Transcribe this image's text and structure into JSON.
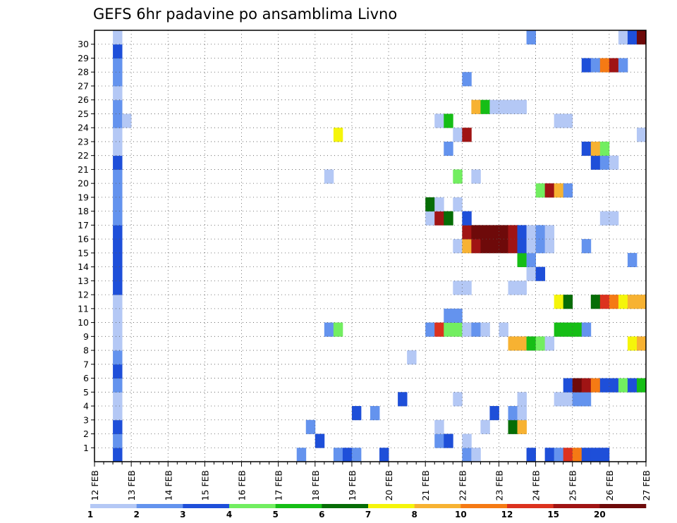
{
  "chart_data": {
    "type": "heatmap",
    "title": "GEFS 6hr padavine po ansamblima Livno",
    "x_labels": [
      "12 FEB",
      "13 FEB",
      "14 FEB",
      "15 FEB",
      "16 FEB",
      "17 FEB",
      "18 FEB",
      "19 FEB",
      "20 FEB",
      "21 FEB",
      "22 FEB",
      "23 FEB",
      "24 FEB",
      "25 FEB",
      "26 FEB",
      "27 FEB"
    ],
    "y_labels": [
      "1",
      "2",
      "3",
      "4",
      "5",
      "6",
      "7",
      "8",
      "9",
      "10",
      "11",
      "12",
      "13",
      "14",
      "15",
      "16",
      "17",
      "18",
      "19",
      "20",
      "21",
      "22",
      "23",
      "24",
      "25",
      "26",
      "27",
      "28",
      "29",
      "30"
    ],
    "x_range": [
      "12 FEB 00Z",
      "27 FEB 00Z"
    ],
    "y_range": [
      0,
      30
    ],
    "grid": true,
    "time_step_hours": 6,
    "colorbar": {
      "labels": [
        "1",
        "2",
        "3",
        "4",
        "5",
        "6",
        "7",
        "8",
        "10",
        "12",
        "15",
        "20"
      ],
      "colors": [
        "#b4c8f5",
        "#6493ee",
        "#1e4fd9",
        "#72ee60",
        "#16be16",
        "#066d06",
        "#f5f50a",
        "#f7b232",
        "#f57a14",
        "#dc321e",
        "#a01414",
        "#6e0a0a"
      ]
    },
    "cells": [
      {
        "m": 0,
        "t": 3,
        "c": 3
      },
      {
        "m": 0,
        "t": 23,
        "c": 2
      },
      {
        "m": 0,
        "t": 27,
        "c": 2
      },
      {
        "m": 0,
        "t": 28,
        "c": 3
      },
      {
        "m": 0,
        "t": 29,
        "c": 2
      },
      {
        "m": 0,
        "t": 32,
        "c": 3
      },
      {
        "m": 0,
        "t": 41,
        "c": 2
      },
      {
        "m": 0,
        "t": 42,
        "c": 1
      },
      {
        "m": 0,
        "t": 48,
        "c": 3
      },
      {
        "m": 0,
        "t": 50,
        "c": 3
      },
      {
        "m": 0,
        "t": 51,
        "c": 2
      },
      {
        "m": 0,
        "t": 52,
        "c": 10
      },
      {
        "m": 0,
        "t": 53,
        "c": 9
      },
      {
        "m": 0,
        "t": 54,
        "c": 3
      },
      {
        "m": 0,
        "t": 55,
        "c": 3
      },
      {
        "m": 0,
        "t": 56,
        "c": 3
      },
      {
        "m": 1,
        "t": 3,
        "c": 2
      },
      {
        "m": 1,
        "t": 25,
        "c": 3
      },
      {
        "m": 1,
        "t": 38,
        "c": 2
      },
      {
        "m": 1,
        "t": 39,
        "c": 3
      },
      {
        "m": 1,
        "t": 41,
        "c": 1
      },
      {
        "m": 2,
        "t": 3,
        "c": 3
      },
      {
        "m": 2,
        "t": 24,
        "c": 2
      },
      {
        "m": 2,
        "t": 38,
        "c": 1
      },
      {
        "m": 2,
        "t": 43,
        "c": 1
      },
      {
        "m": 2,
        "t": 46,
        "c": 6
      },
      {
        "m": 2,
        "t": 47,
        "c": 8
      },
      {
        "m": 3,
        "t": 3,
        "c": 1
      },
      {
        "m": 3,
        "t": 29,
        "c": 3
      },
      {
        "m": 3,
        "t": 31,
        "c": 2
      },
      {
        "m": 3,
        "t": 44,
        "c": 3
      },
      {
        "m": 3,
        "t": 46,
        "c": 2
      },
      {
        "m": 3,
        "t": 47,
        "c": 1
      },
      {
        "m": 4,
        "t": 3,
        "c": 1
      },
      {
        "m": 4,
        "t": 34,
        "c": 3
      },
      {
        "m": 4,
        "t": 40,
        "c": 1
      },
      {
        "m": 4,
        "t": 47,
        "c": 1
      },
      {
        "m": 4,
        "t": 51,
        "c": 1
      },
      {
        "m": 4,
        "t": 52,
        "c": 1
      },
      {
        "m": 4,
        "t": 53,
        "c": 2
      },
      {
        "m": 4,
        "t": 54,
        "c": 2
      },
      {
        "m": 5,
        "t": 3,
        "c": 2
      },
      {
        "m": 5,
        "t": 52,
        "c": 3
      },
      {
        "m": 5,
        "t": 53,
        "c": 12
      },
      {
        "m": 5,
        "t": 54,
        "c": 11
      },
      {
        "m": 5,
        "t": 55,
        "c": 9
      },
      {
        "m": 5,
        "t": 56,
        "c": 3
      },
      {
        "m": 5,
        "t": 57,
        "c": 3
      },
      {
        "m": 5,
        "t": 58,
        "c": 4
      },
      {
        "m": 5,
        "t": 59,
        "c": 3
      },
      {
        "m": 5,
        "t": 60,
        "c": 5
      },
      {
        "m": 6,
        "t": 3,
        "c": 3
      },
      {
        "m": 7,
        "t": 3,
        "c": 2
      },
      {
        "m": 7,
        "t": 35,
        "c": 1
      },
      {
        "m": 8,
        "t": 3,
        "c": 1
      },
      {
        "m": 8,
        "t": 46,
        "c": 8
      },
      {
        "m": 8,
        "t": 47,
        "c": 8
      },
      {
        "m": 8,
        "t": 48,
        "c": 5
      },
      {
        "m": 8,
        "t": 49,
        "c": 4
      },
      {
        "m": 8,
        "t": 50,
        "c": 1
      },
      {
        "m": 8,
        "t": 59,
        "c": 7
      },
      {
        "m": 8,
        "t": 60,
        "c": 8
      },
      {
        "m": 9,
        "t": 3,
        "c": 1
      },
      {
        "m": 9,
        "t": 26,
        "c": 2
      },
      {
        "m": 9,
        "t": 27,
        "c": 4
      },
      {
        "m": 9,
        "t": 37,
        "c": 2
      },
      {
        "m": 9,
        "t": 38,
        "c": 10
      },
      {
        "m": 9,
        "t": 39,
        "c": 4
      },
      {
        "m": 9,
        "t": 40,
        "c": 4
      },
      {
        "m": 9,
        "t": 41,
        "c": 1
      },
      {
        "m": 9,
        "t": 42,
        "c": 2
      },
      {
        "m": 9,
        "t": 43,
        "c": 1
      },
      {
        "m": 9,
        "t": 45,
        "c": 1
      },
      {
        "m": 9,
        "t": 51,
        "c": 5
      },
      {
        "m": 9,
        "t": 52,
        "c": 5
      },
      {
        "m": 9,
        "t": 53,
        "c": 5
      },
      {
        "m": 9,
        "t": 54,
        "c": 2
      },
      {
        "m": 10,
        "t": 3,
        "c": 1
      },
      {
        "m": 10,
        "t": 39,
        "c": 2
      },
      {
        "m": 10,
        "t": 40,
        "c": 2
      },
      {
        "m": 11,
        "t": 3,
        "c": 1
      },
      {
        "m": 11,
        "t": 51,
        "c": 7
      },
      {
        "m": 11,
        "t": 52,
        "c": 6
      },
      {
        "m": 11,
        "t": 55,
        "c": 6
      },
      {
        "m": 11,
        "t": 56,
        "c": 10
      },
      {
        "m": 11,
        "t": 57,
        "c": 9
      },
      {
        "m": 11,
        "t": 58,
        "c": 7
      },
      {
        "m": 11,
        "t": 59,
        "c": 8
      },
      {
        "m": 11,
        "t": 60,
        "c": 8
      },
      {
        "m": 12,
        "t": 3,
        "c": 3
      },
      {
        "m": 12,
        "t": 40,
        "c": 1
      },
      {
        "m": 12,
        "t": 41,
        "c": 1
      },
      {
        "m": 12,
        "t": 46,
        "c": 1
      },
      {
        "m": 12,
        "t": 47,
        "c": 1
      },
      {
        "m": 13,
        "t": 3,
        "c": 3
      },
      {
        "m": 13,
        "t": 48,
        "c": 1
      },
      {
        "m": 13,
        "t": 49,
        "c": 3
      },
      {
        "m": 14,
        "t": 3,
        "c": 3
      },
      {
        "m": 14,
        "t": 47,
        "c": 5
      },
      {
        "m": 14,
        "t": 48,
        "c": 2
      },
      {
        "m": 14,
        "t": 59,
        "c": 2
      },
      {
        "m": 15,
        "t": 3,
        "c": 3
      },
      {
        "m": 15,
        "t": 40,
        "c": 1
      },
      {
        "m": 15,
        "t": 41,
        "c": 8
      },
      {
        "m": 15,
        "t": 42,
        "c": 11
      },
      {
        "m": 15,
        "t": 43,
        "c": 12
      },
      {
        "m": 15,
        "t": 44,
        "c": 12
      },
      {
        "m": 15,
        "t": 45,
        "c": 12
      },
      {
        "m": 15,
        "t": 46,
        "c": 11
      },
      {
        "m": 15,
        "t": 47,
        "c": 3
      },
      {
        "m": 15,
        "t": 48,
        "c": 1
      },
      {
        "m": 15,
        "t": 49,
        "c": 2
      },
      {
        "m": 15,
        "t": 50,
        "c": 1
      },
      {
        "m": 15,
        "t": 54,
        "c": 2
      },
      {
        "m": 16,
        "t": 3,
        "c": 3
      },
      {
        "m": 16,
        "t": 41,
        "c": 11
      },
      {
        "m": 16,
        "t": 42,
        "c": 12
      },
      {
        "m": 16,
        "t": 43,
        "c": 12
      },
      {
        "m": 16,
        "t": 44,
        "c": 12
      },
      {
        "m": 16,
        "t": 45,
        "c": 12
      },
      {
        "m": 16,
        "t": 46,
        "c": 11
      },
      {
        "m": 16,
        "t": 47,
        "c": 3
      },
      {
        "m": 16,
        "t": 48,
        "c": 1
      },
      {
        "m": 16,
        "t": 49,
        "c": 2
      },
      {
        "m": 16,
        "t": 50,
        "c": 1
      },
      {
        "m": 17,
        "t": 3,
        "c": 2
      },
      {
        "m": 17,
        "t": 37,
        "c": 1
      },
      {
        "m": 17,
        "t": 38,
        "c": 11
      },
      {
        "m": 17,
        "t": 39,
        "c": 6
      },
      {
        "m": 17,
        "t": 41,
        "c": 3
      },
      {
        "m": 17,
        "t": 56,
        "c": 1
      },
      {
        "m": 17,
        "t": 57,
        "c": 1
      },
      {
        "m": 18,
        "t": 3,
        "c": 2
      },
      {
        "m": 18,
        "t": 37,
        "c": 6
      },
      {
        "m": 18,
        "t": 38,
        "c": 1
      },
      {
        "m": 18,
        "t": 40,
        "c": 1
      },
      {
        "m": 19,
        "t": 3,
        "c": 2
      },
      {
        "m": 19,
        "t": 49,
        "c": 4
      },
      {
        "m": 19,
        "t": 50,
        "c": 11
      },
      {
        "m": 19,
        "t": 51,
        "c": 8
      },
      {
        "m": 19,
        "t": 52,
        "c": 2
      },
      {
        "m": 20,
        "t": 3,
        "c": 2
      },
      {
        "m": 20,
        "t": 26,
        "c": 1
      },
      {
        "m": 20,
        "t": 40,
        "c": 4
      },
      {
        "m": 20,
        "t": 42,
        "c": 1
      },
      {
        "m": 21,
        "t": 3,
        "c": 3
      },
      {
        "m": 21,
        "t": 55,
        "c": 3
      },
      {
        "m": 21,
        "t": 56,
        "c": 2
      },
      {
        "m": 21,
        "t": 57,
        "c": 1
      },
      {
        "m": 22,
        "t": 3,
        "c": 1
      },
      {
        "m": 22,
        "t": 39,
        "c": 2
      },
      {
        "m": 22,
        "t": 54,
        "c": 3
      },
      {
        "m": 22,
        "t": 55,
        "c": 8
      },
      {
        "m": 22,
        "t": 56,
        "c": 4
      },
      {
        "m": 23,
        "t": 3,
        "c": 1
      },
      {
        "m": 23,
        "t": 27,
        "c": 7
      },
      {
        "m": 23,
        "t": 40,
        "c": 1
      },
      {
        "m": 23,
        "t": 41,
        "c": 11
      },
      {
        "m": 23,
        "t": 60,
        "c": 1
      },
      {
        "m": 24,
        "t": 3,
        "c": 2
      },
      {
        "m": 24,
        "t": 4,
        "c": 1
      },
      {
        "m": 24,
        "t": 38,
        "c": 1
      },
      {
        "m": 24,
        "t": 39,
        "c": 5
      },
      {
        "m": 24,
        "t": 51,
        "c": 1
      },
      {
        "m": 24,
        "t": 52,
        "c": 1
      },
      {
        "m": 25,
        "t": 3,
        "c": 2
      },
      {
        "m": 25,
        "t": 42,
        "c": 8
      },
      {
        "m": 25,
        "t": 43,
        "c": 5
      },
      {
        "m": 25,
        "t": 44,
        "c": 1
      },
      {
        "m": 25,
        "t": 45,
        "c": 1
      },
      {
        "m": 25,
        "t": 46,
        "c": 1
      },
      {
        "m": 25,
        "t": 47,
        "c": 1
      },
      {
        "m": 26,
        "t": 3,
        "c": 1
      },
      {
        "m": 27,
        "t": 3,
        "c": 2
      },
      {
        "m": 27,
        "t": 41,
        "c": 2
      },
      {
        "m": 28,
        "t": 3,
        "c": 2
      },
      {
        "m": 28,
        "t": 54,
        "c": 3
      },
      {
        "m": 28,
        "t": 55,
        "c": 2
      },
      {
        "m": 28,
        "t": 56,
        "c": 9
      },
      {
        "m": 28,
        "t": 57,
        "c": 11
      },
      {
        "m": 28,
        "t": 58,
        "c": 2
      },
      {
        "m": 29,
        "t": 3,
        "c": 3
      },
      {
        "m": 30,
        "t": 3,
        "c": 1
      },
      {
        "m": 30,
        "t": 48,
        "c": 2
      },
      {
        "m": 30,
        "t": 58,
        "c": 1
      },
      {
        "m": 30,
        "t": 59,
        "c": 3
      },
      {
        "m": 30,
        "t": 60,
        "c": 12
      }
    ]
  }
}
